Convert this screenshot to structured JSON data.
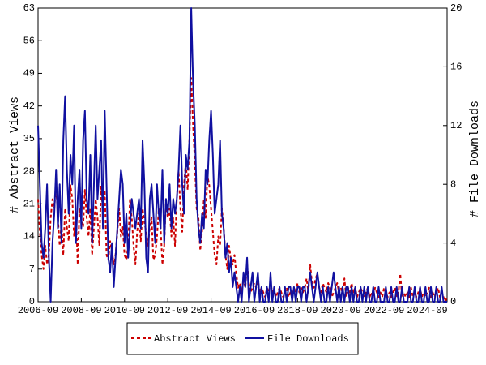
{
  "chart_data": {
    "type": "line",
    "ylabel": "# Abstract Views",
    "y2label": "# File Downloads",
    "ylim": [
      0,
      63
    ],
    "yticks": [
      0,
      7,
      14,
      21,
      28,
      35,
      42,
      49,
      56,
      63
    ],
    "y2lim": [
      0,
      20
    ],
    "y2ticks": [
      0,
      4,
      8,
      12,
      16,
      20
    ],
    "grid": false,
    "legend": "bottom",
    "xticks": [
      "2006-09",
      "2008-09",
      "2010-09",
      "2012-09",
      "2014-09",
      "2016-09",
      "2018-09",
      "2020-09",
      "2022-09",
      "2024-09"
    ],
    "x": [
      "2006-09",
      "2006-10",
      "2006-11",
      "2006-12",
      "2007-01",
      "2007-02",
      "2007-03",
      "2007-04",
      "2007-05",
      "2007-06",
      "2007-07",
      "2007-08",
      "2007-09",
      "2007-10",
      "2007-11",
      "2007-12",
      "2008-01",
      "2008-02",
      "2008-03",
      "2008-04",
      "2008-05",
      "2008-06",
      "2008-07",
      "2008-08",
      "2008-09",
      "2008-10",
      "2008-11",
      "2008-12",
      "2009-01",
      "2009-02",
      "2009-03",
      "2009-04",
      "2009-05",
      "2009-06",
      "2009-07",
      "2009-08",
      "2009-09",
      "2009-10",
      "2009-11",
      "2009-12",
      "2010-01",
      "2010-02",
      "2010-03",
      "2010-04",
      "2010-05",
      "2010-06",
      "2010-07",
      "2010-08",
      "2010-09",
      "2010-10",
      "2010-11",
      "2010-12",
      "2011-01",
      "2011-02",
      "2011-03",
      "2011-04",
      "2011-05",
      "2011-06",
      "2011-07",
      "2011-08",
      "2011-09",
      "2011-10",
      "2011-11",
      "2011-12",
      "2012-01",
      "2012-02",
      "2012-03",
      "2012-04",
      "2012-05",
      "2012-06",
      "2012-07",
      "2012-08",
      "2012-09",
      "2012-10",
      "2012-11",
      "2012-12",
      "2013-01",
      "2013-02",
      "2013-03",
      "2013-04",
      "2013-05",
      "2013-06",
      "2013-07",
      "2013-08",
      "2013-09",
      "2013-10",
      "2013-11",
      "2013-12",
      "2014-01",
      "2014-02",
      "2014-03",
      "2014-04",
      "2014-05",
      "2014-06",
      "2014-07",
      "2014-08",
      "2014-09",
      "2014-10",
      "2014-11",
      "2014-12",
      "2015-01",
      "2015-02",
      "2015-03",
      "2015-04",
      "2015-05",
      "2015-06",
      "2015-07",
      "2015-08",
      "2015-09",
      "2015-10",
      "2015-11",
      "2015-12",
      "2016-01",
      "2016-02",
      "2016-03",
      "2016-04",
      "2016-05",
      "2016-06",
      "2016-07",
      "2016-08",
      "2016-09",
      "2016-10",
      "2016-11",
      "2016-12",
      "2017-01",
      "2017-02",
      "2017-03",
      "2017-04",
      "2017-05",
      "2017-06",
      "2017-07",
      "2017-08",
      "2017-09",
      "2017-10",
      "2017-11",
      "2017-12",
      "2018-01",
      "2018-02",
      "2018-03",
      "2018-04",
      "2018-05",
      "2018-06",
      "2018-07",
      "2018-08",
      "2018-09",
      "2018-10",
      "2018-11",
      "2018-12",
      "2019-01",
      "2019-02",
      "2019-03",
      "2019-04",
      "2019-05",
      "2019-06",
      "2019-07",
      "2019-08",
      "2019-09",
      "2019-10",
      "2019-11",
      "2019-12",
      "2020-01",
      "2020-02",
      "2020-03",
      "2020-04",
      "2020-05",
      "2020-06",
      "2020-07",
      "2020-08",
      "2020-09",
      "2020-10",
      "2020-11",
      "2020-12",
      "2021-01",
      "2021-02",
      "2021-03",
      "2021-04",
      "2021-05",
      "2021-06",
      "2021-07",
      "2021-08",
      "2021-09",
      "2021-10",
      "2021-11",
      "2021-12",
      "2022-01",
      "2022-02",
      "2022-03",
      "2022-04",
      "2022-05",
      "2022-06",
      "2022-07",
      "2022-08",
      "2022-09",
      "2022-10",
      "2022-11",
      "2022-12",
      "2023-01",
      "2023-02",
      "2023-03",
      "2023-04",
      "2023-05",
      "2023-06",
      "2023-07",
      "2023-08",
      "2023-09",
      "2023-10",
      "2023-11",
      "2023-12",
      "2024-01",
      "2024-02",
      "2024-03",
      "2024-04",
      "2024-05",
      "2024-06",
      "2024-07",
      "2024-08",
      "2024-09",
      "2024-10",
      "2024-11",
      "2024-12",
      "2025-01",
      "2025-02",
      "2025-03",
      "2025-04",
      "2025-05",
      "2025-06",
      "2025-07",
      "2025-08"
    ],
    "series": [
      {
        "name": "Abstract Views",
        "color": "#cc0000",
        "style": "dashed",
        "axis": "y",
        "values": [
          22,
          15,
          10,
          7,
          12,
          8,
          10,
          18,
          22,
          20,
          25,
          18,
          12,
          17,
          10,
          20,
          16,
          13,
          25,
          22,
          14,
          19,
          8,
          20,
          18,
          16,
          24,
          18,
          14,
          20,
          10,
          16,
          22,
          18,
          12,
          25,
          19,
          24,
          10,
          9,
          13,
          11,
          8,
          10,
          15,
          20,
          14,
          16,
          10,
          9,
          12,
          22,
          18,
          12,
          8,
          15,
          19,
          13,
          20,
          17,
          15,
          12,
          16,
          18,
          9,
          10,
          14,
          20,
          16,
          8,
          12,
          22,
          18,
          20,
          14,
          18,
          12,
          22,
          28,
          20,
          15,
          25,
          30,
          24,
          35,
          48,
          38,
          30,
          20,
          18,
          11,
          15,
          22,
          18,
          27,
          25,
          20,
          15,
          10,
          8,
          14,
          12,
          20,
          16,
          10,
          7,
          12,
          9,
          8,
          10,
          6,
          3,
          4,
          2,
          5,
          3,
          8,
          4,
          2,
          3,
          4,
          3,
          5,
          2,
          3,
          2,
          1,
          3,
          2,
          4,
          2,
          3,
          1,
          2,
          3,
          2,
          1,
          2,
          3,
          1,
          2,
          1,
          3,
          2,
          4,
          2,
          3,
          2,
          3,
          5,
          2,
          8,
          4,
          3,
          5,
          6,
          3,
          2,
          4,
          3,
          2,
          4,
          3,
          1,
          2,
          3,
          4,
          2,
          3,
          2,
          5,
          1,
          3,
          2,
          4,
          2,
          3,
          1,
          2,
          3,
          2,
          1,
          2,
          3,
          1,
          2,
          1,
          3,
          2,
          1,
          2,
          1,
          3,
          2,
          1,
          2,
          1,
          2,
          3,
          1,
          2,
          6,
          1,
          2,
          1,
          2,
          1,
          3,
          1,
          2,
          1,
          2,
          3,
          1,
          2,
          1,
          2,
          3,
          1,
          2,
          1,
          2,
          3,
          1,
          2,
          1,
          0,
          1
        ]
      },
      {
        "name": "File Downloads",
        "color": "#1010a0",
        "style": "solid",
        "axis": "y2",
        "values": [
          12,
          8,
          4,
          3,
          5,
          8,
          3,
          0,
          4,
          6,
          9,
          5,
          8,
          4,
          11,
          14,
          9,
          6,
          10,
          8,
          12,
          4,
          7,
          9,
          5,
          11,
          13,
          7,
          6,
          10,
          4,
          8,
          12,
          7,
          9,
          11,
          5,
          13,
          8,
          3,
          2,
          4,
          1,
          3,
          5,
          7,
          9,
          8,
          4,
          6,
          3,
          5,
          7,
          6,
          5,
          6,
          7,
          5,
          11,
          8,
          3,
          2,
          7,
          8,
          6,
          4,
          8,
          6,
          5,
          9,
          4,
          7,
          6,
          8,
          5,
          7,
          6,
          7,
          9,
          12,
          8,
          6,
          10,
          9,
          11,
          20,
          15,
          12,
          7,
          5,
          4,
          6,
          5,
          9,
          8,
          11,
          13,
          10,
          6,
          7,
          8,
          11,
          6,
          5,
          3,
          4,
          2,
          3,
          1,
          2,
          1,
          0,
          1,
          0,
          2,
          1,
          3,
          0,
          1,
          2,
          0,
          1,
          2,
          0,
          1,
          0,
          0,
          1,
          0,
          2,
          0,
          1,
          0,
          0,
          1,
          0,
          0,
          1,
          0,
          1,
          1,
          0,
          1,
          0,
          1,
          1,
          0,
          1,
          1,
          0,
          1,
          2,
          1,
          0,
          1,
          2,
          1,
          0,
          1,
          0,
          0,
          1,
          0,
          1,
          2,
          1,
          0,
          1,
          0,
          1,
          0,
          1,
          1,
          0,
          1,
          0,
          1,
          0,
          0,
          1,
          0,
          1,
          0,
          1,
          0,
          0,
          1,
          0,
          0,
          1,
          0,
          0,
          0,
          1,
          0,
          0,
          1,
          0,
          0,
          1,
          0,
          0,
          1,
          0,
          0,
          0,
          1,
          0,
          0,
          1,
          0,
          0,
          1,
          0,
          0,
          1,
          0,
          0,
          1,
          0,
          0,
          1,
          0,
          0,
          1,
          0,
          0,
          0
        ]
      }
    ]
  }
}
